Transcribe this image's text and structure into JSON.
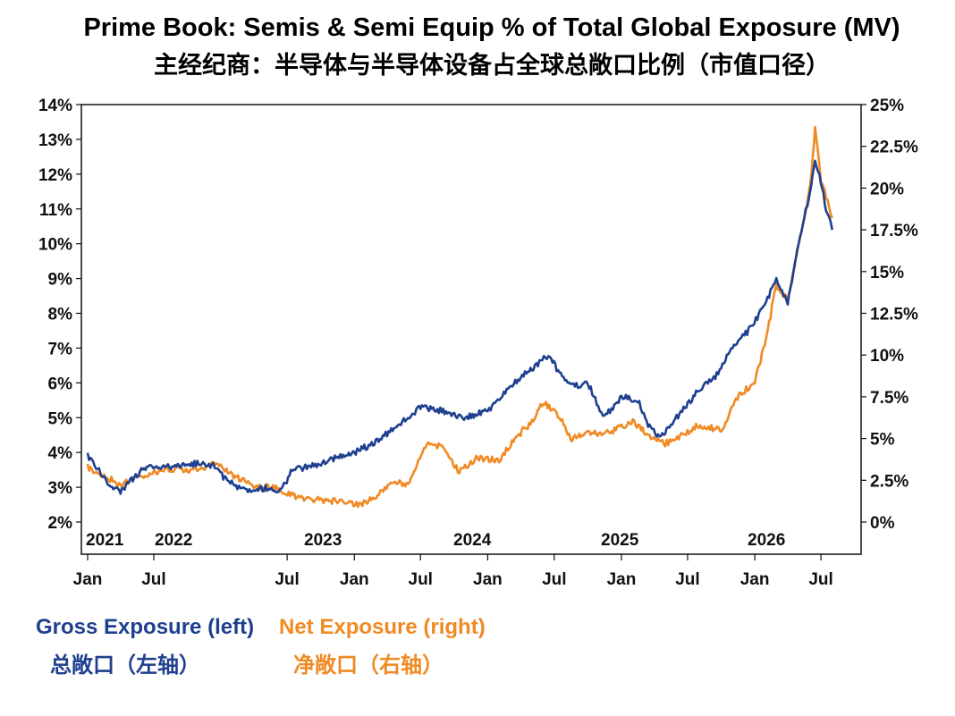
{
  "chart_data": {
    "type": "line",
    "title": "Prime Book: Semis & Semi Equip % of Total Global Exposure (MV)",
    "subtitle": "主经纪商：半导体与半导体设备占全球总敞口比例（市值口径）",
    "x_range": [
      "2021-01-01",
      "2026-08-31"
    ],
    "year_labels": [
      "2021",
      "2022",
      "2023",
      "2024",
      "2025",
      "2026"
    ],
    "month_labels": [
      "Jan",
      "Jul",
      "Jul",
      "Jan",
      "Jul",
      "Jan",
      "Jul",
      "Jan",
      "Jul",
      "Jan",
      "Jul"
    ],
    "left_axis": {
      "ylim": [
        2,
        14
      ],
      "ticks": [
        "2%",
        "3%",
        "4%",
        "5%",
        "6%",
        "7%",
        "8%",
        "9%",
        "10%",
        "11%",
        "12%",
        "13%",
        "14%"
      ]
    },
    "right_axis": {
      "ylim": [
        0,
        25
      ],
      "ticks": [
        "0%",
        "2.5%",
        "5%",
        "7.5%",
        "10%",
        "12.5%",
        "15%",
        "17.5%",
        "20%",
        "22.5%",
        "25%"
      ]
    },
    "series": [
      {
        "name": "Gross Exposure (left)",
        "name_cn": "总敞口（左轴）",
        "axis": "left",
        "color": "#1f3f8f",
        "points": [
          [
            "2021-01-01",
            3.9
          ],
          [
            "2021-02-01",
            3.5
          ],
          [
            "2021-03-01",
            3.0
          ],
          [
            "2021-04-01",
            2.9
          ],
          [
            "2021-05-01",
            3.2
          ],
          [
            "2021-06-01",
            3.5
          ],
          [
            "2021-07-01",
            3.6
          ],
          [
            "2021-09-01",
            3.6
          ],
          [
            "2021-11-01",
            3.7
          ],
          [
            "2021-12-15",
            3.6
          ],
          [
            "2022-01-15",
            3.2
          ],
          [
            "2022-02-15",
            3.0
          ],
          [
            "2022-04-01",
            2.9
          ],
          [
            "2022-05-15",
            3.0
          ],
          [
            "2022-06-15",
            2.9
          ],
          [
            "2022-07-15",
            3.5
          ],
          [
            "2022-09-01",
            3.6
          ],
          [
            "2022-11-01",
            3.8
          ],
          [
            "2023-01-01",
            4.0
          ],
          [
            "2023-03-01",
            4.3
          ],
          [
            "2023-05-01",
            4.8
          ],
          [
            "2023-07-01",
            5.3
          ],
          [
            "2023-09-01",
            5.2
          ],
          [
            "2023-11-01",
            5.0
          ],
          [
            "2024-01-01",
            5.2
          ],
          [
            "2024-03-01",
            5.9
          ],
          [
            "2024-05-01",
            6.4
          ],
          [
            "2024-06-15",
            6.8
          ],
          [
            "2024-07-15",
            6.3
          ],
          [
            "2024-08-15",
            5.9
          ],
          [
            "2024-10-01",
            6.0
          ],
          [
            "2024-11-15",
            5.0
          ],
          [
            "2025-01-01",
            5.6
          ],
          [
            "2025-02-15",
            5.5
          ],
          [
            "2025-03-15",
            4.8
          ],
          [
            "2025-04-15",
            4.4
          ],
          [
            "2025-06-01",
            5.0
          ],
          [
            "2025-08-01",
            5.8
          ],
          [
            "2025-09-15",
            6.2
          ],
          [
            "2025-11-01",
            7.0
          ],
          [
            "2025-12-15",
            7.5
          ],
          [
            "2026-02-01",
            8.3
          ],
          [
            "2026-03-01",
            9.0
          ],
          [
            "2026-04-01",
            8.3
          ],
          [
            "2026-05-01",
            10.0
          ],
          [
            "2026-06-01",
            11.5
          ],
          [
            "2026-06-15",
            12.3
          ],
          [
            "2026-07-01",
            11.8
          ],
          [
            "2026-07-15",
            11.0
          ],
          [
            "2026-08-01",
            10.4
          ]
        ]
      },
      {
        "name": "Net Exposure (right)",
        "name_cn": "净敞口（右轴）",
        "axis": "right",
        "color": "#f08a24",
        "points": [
          [
            "2021-01-01",
            3.3
          ],
          [
            "2021-02-15",
            2.8
          ],
          [
            "2021-04-01",
            2.2
          ],
          [
            "2021-05-15",
            2.7
          ],
          [
            "2021-07-01",
            3.0
          ],
          [
            "2021-09-01",
            3.2
          ],
          [
            "2021-11-01",
            3.1
          ],
          [
            "2021-12-15",
            3.5
          ],
          [
            "2022-02-01",
            2.8
          ],
          [
            "2022-04-01",
            2.2
          ],
          [
            "2022-06-01",
            2.0
          ],
          [
            "2022-08-01",
            1.5
          ],
          [
            "2022-10-01",
            1.3
          ],
          [
            "2022-12-01",
            1.2
          ],
          [
            "2023-01-15",
            1.0
          ],
          [
            "2023-03-01",
            1.5
          ],
          [
            "2023-04-15",
            2.4
          ],
          [
            "2023-06-01",
            2.3
          ],
          [
            "2023-07-15",
            4.6
          ],
          [
            "2023-09-01",
            4.5
          ],
          [
            "2023-10-15",
            3.0
          ],
          [
            "2023-12-01",
            3.8
          ],
          [
            "2024-02-01",
            3.7
          ],
          [
            "2024-03-15",
            5.0
          ],
          [
            "2024-05-01",
            6.0
          ],
          [
            "2024-06-01",
            7.2
          ],
          [
            "2024-07-15",
            6.3
          ],
          [
            "2024-08-15",
            5.0
          ],
          [
            "2024-10-01",
            5.3
          ],
          [
            "2024-12-01",
            5.4
          ],
          [
            "2025-02-01",
            6.0
          ],
          [
            "2025-03-15",
            5.2
          ],
          [
            "2025-05-01",
            4.7
          ],
          [
            "2025-06-15",
            5.2
          ],
          [
            "2025-08-01",
            5.8
          ],
          [
            "2025-10-01",
            5.5
          ],
          [
            "2025-11-15",
            7.5
          ],
          [
            "2026-01-01",
            8.4
          ],
          [
            "2026-02-01",
            11.0
          ],
          [
            "2026-03-01",
            14.2
          ],
          [
            "2026-04-01",
            13.3
          ],
          [
            "2026-05-01",
            16.5
          ],
          [
            "2026-06-01",
            20.0
          ],
          [
            "2026-06-15",
            23.5
          ],
          [
            "2026-07-01",
            20.5
          ],
          [
            "2026-07-15",
            19.5
          ],
          [
            "2026-08-01",
            18.2
          ]
        ]
      }
    ]
  }
}
